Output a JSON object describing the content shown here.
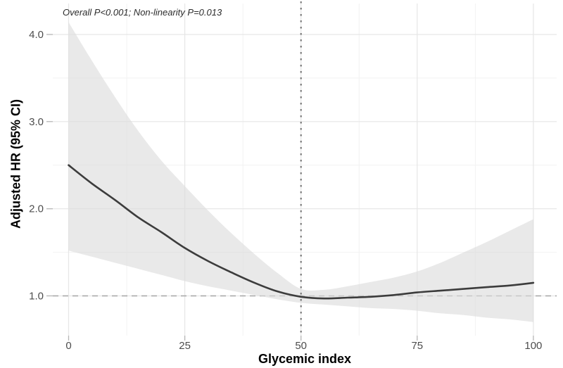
{
  "annotation": {
    "text": "Overall P<0.001; Non-linearity P=0.013"
  },
  "axes": {
    "x_title": "Glycemic index",
    "y_title": "Adjusted HR (95% CI)",
    "x_tick_labels": [
      "0",
      "25",
      "50",
      "75",
      "100"
    ],
    "y_tick_labels": [
      "1.0",
      "2.0",
      "3.0",
      "4.0"
    ]
  },
  "chart_data": {
    "type": "line",
    "title": "",
    "annotation": "Overall P<0.001; Non-linearity P=0.013",
    "xlabel": "Glycemic index",
    "ylabel": "Adjusted HR (95% CI)",
    "x": [
      0,
      5,
      10,
      15,
      20,
      25,
      30,
      35,
      40,
      45,
      50,
      55,
      60,
      65,
      70,
      75,
      80,
      85,
      90,
      95,
      100
    ],
    "series": [
      {
        "name": "Adjusted HR",
        "values": [
          2.5,
          2.29,
          2.1,
          1.9,
          1.73,
          1.55,
          1.4,
          1.27,
          1.15,
          1.05,
          0.99,
          0.97,
          0.98,
          0.99,
          1.01,
          1.04,
          1.06,
          1.08,
          1.1,
          1.12,
          1.15
        ]
      },
      {
        "name": "Upper 95% CI",
        "values": [
          4.14,
          3.7,
          3.28,
          2.89,
          2.55,
          2.26,
          1.98,
          1.72,
          1.48,
          1.26,
          1.08,
          1.07,
          1.11,
          1.16,
          1.21,
          1.28,
          1.38,
          1.5,
          1.62,
          1.75,
          1.88
        ]
      },
      {
        "name": "Lower 95% CI",
        "values": [
          1.52,
          1.45,
          1.38,
          1.31,
          1.24,
          1.17,
          1.11,
          1.06,
          1.01,
          0.96,
          0.92,
          0.9,
          0.88,
          0.86,
          0.85,
          0.83,
          0.8,
          0.78,
          0.75,
          0.73,
          0.7
        ]
      }
    ],
    "x_ticks": [
      0,
      25,
      50,
      75,
      100
    ],
    "y_ticks": [
      1.0,
      2.0,
      3.0,
      4.0
    ],
    "x_minor_ticks": [
      12.5,
      37.5,
      62.5,
      87.5
    ],
    "y_minor_ticks": [
      1.5,
      2.5,
      3.5
    ],
    "xlim": [
      -3.41,
      105.01
    ],
    "ylim": [
      0.544,
      4.355
    ],
    "reference_lines": [
      {
        "orientation": "horizontal",
        "value": 1.0,
        "style": "dashed"
      },
      {
        "orientation": "vertical",
        "value": 50,
        "style": "dotted"
      }
    ],
    "grid": "major+minor",
    "legend_position": "none",
    "colors": {
      "curve": "#3c3c3c",
      "band": "#dcdcdc",
      "band_opacity": 0.62,
      "grid_major": "#e6e6e6",
      "grid_minor": "#f2f2f2",
      "ref_dashed": "#a6a6a6",
      "ref_dotted": "#6e6e6e",
      "tick_label": "#4d4d4d",
      "tick_mark": "#b5b5b5",
      "axis_title": "#000000",
      "background": "#ffffff"
    }
  }
}
